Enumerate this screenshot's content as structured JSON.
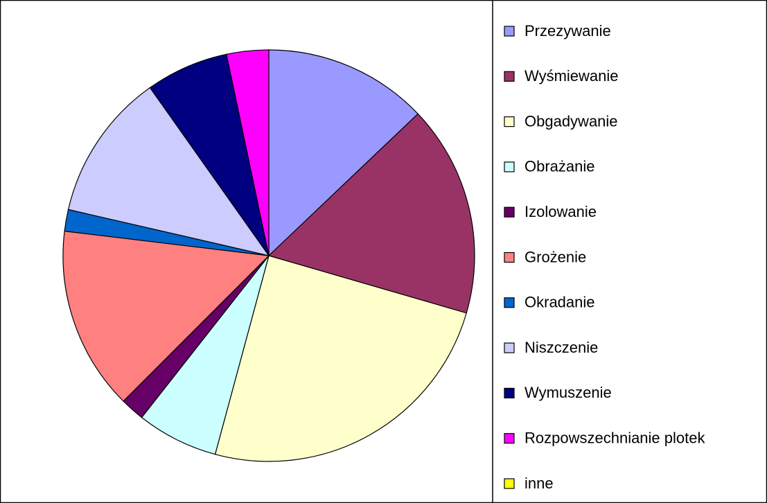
{
  "chart_data": {
    "type": "pie",
    "categories": [
      "Przezywanie",
      "Wyśmiewanie",
      "Obgadywanie",
      "Obrażanie",
      "Izolowanie",
      "Grożenie",
      "Okradanie",
      "Niszczenie",
      "Wymuszenie",
      "Rozpowszechnianie plotek",
      "inne"
    ],
    "values": [
      12.9,
      16.6,
      24.7,
      6.4,
      1.9,
      14.4,
      1.7,
      11.6,
      6.5,
      3.3,
      0
    ],
    "colors": [
      "#9999ff",
      "#993366",
      "#ffffcc",
      "#ccffff",
      "#660066",
      "#ff8080",
      "#0066cc",
      "#ccccff",
      "#000080",
      "#ff00ff",
      "#ffff00"
    ],
    "legend": "right"
  }
}
